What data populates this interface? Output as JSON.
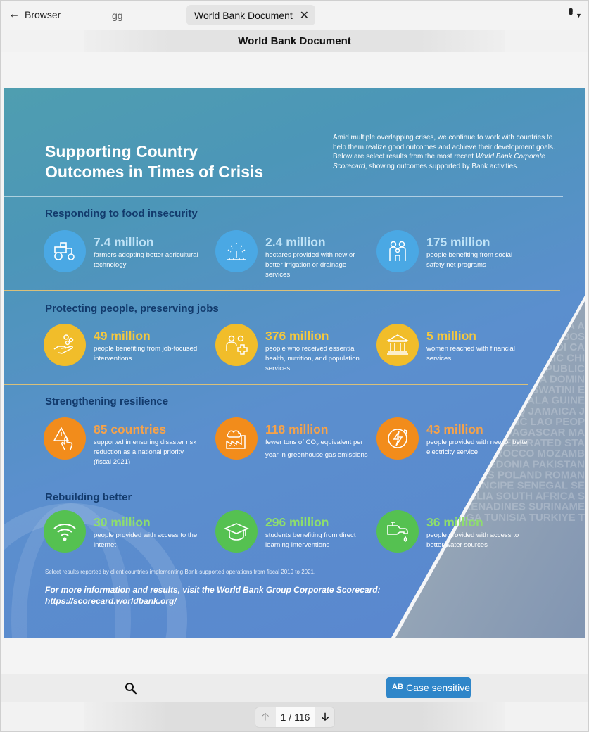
{
  "browser": {
    "back_label": "Browser",
    "url_text": "gg",
    "tab_title": "World Bank Document",
    "doc_title": "World Bank Document"
  },
  "document": {
    "title_line1": "Supporting Country",
    "title_line2": "Outcomes in Times of Crisis",
    "intro_pre": "Amid multiple overlapping crises, we continue to work with countries to help them realize good outcomes and achieve their development goals. Below are select results from the most recent ",
    "intro_italic": "World Bank Corporate Scorecard",
    "intro_post": ", showing outcomes supported by Bank activities.",
    "sections": [
      {
        "heading": "Responding to food insecurity",
        "stats": [
          {
            "value": "7.4 million",
            "desc": "farmers adopting better agricultural technology",
            "icon": "tractor-icon"
          },
          {
            "value": "2.4 million",
            "desc": "hectares provided with new or better irrigation or drainage services",
            "icon": "irrigation-icon"
          },
          {
            "value": "175 million",
            "desc": "people benefiting from social safety net programs",
            "icon": "family-icon"
          }
        ]
      },
      {
        "heading": "Protecting people, preserving jobs",
        "stats": [
          {
            "value": "49 million",
            "desc": "people benefiting from job-focused interventions",
            "icon": "hand-coins-icon"
          },
          {
            "value": "376 million",
            "desc": "people who received essential health, nutrition, and population services",
            "icon": "health-cross-icon"
          },
          {
            "value": "5 million",
            "desc": "women reached with financial services",
            "icon": "bank-icon"
          }
        ]
      },
      {
        "heading": "Strengthening resilience",
        "stats": [
          {
            "value": "85 countries",
            "desc": "supported in ensuring disaster risk reduction as a national priority (fiscal 2021)",
            "icon": "warning-hand-icon"
          },
          {
            "value": "118 million",
            "desc_pre": "fewer tons of CO",
            "desc_sub": "2",
            "desc_post": " equivalent per year in greenhouse gas emissions",
            "icon": "factory-cloud-icon"
          },
          {
            "value": "43 million",
            "desc": "people provided with new or better electricity service",
            "icon": "electricity-icon"
          }
        ]
      },
      {
        "heading": "Rebuilding better",
        "stats": [
          {
            "value": "30 million",
            "desc": "people provided with access to the internet",
            "icon": "wifi-icon"
          },
          {
            "value": "296 million",
            "desc": "students benefiting from direct learning interventions",
            "icon": "graduation-cap-icon"
          },
          {
            "value": "36 million",
            "desc": "people provided with access to better water sources",
            "icon": "water-tap-icon"
          }
        ]
      }
    ],
    "footnote": "Select results reported by client countries implementing Bank-supported operations from fiscal 2019 to 2021.",
    "more_line1": "For more information and results, visit the World Bank Group Corporate Scorecard:",
    "more_line2": "https://scorecard.worldbank.org/",
    "country_rows": [
      "ARGENTINA A",
      "BOLIVIA BOS",
      "BURUNDI CA",
      "PUBLIC CHI",
      "CONGO REPUBLIC",
      "DOMINICA DOMIN",
      "SALVADOR ESWATINI E",
      "GUATEMALA GUINE",
      "REPUBLIC IRAQ JAMAICA J",
      "REPUBLIC LAO PEOP",
      "MADAGASCAR MA",
      "MEXICO FEDERATED STA",
      "MONTENEGRO MOROCCO MOZAMB",
      "NORTH MACEDONIA PAKISTAN",
      "PHILIPPINES POLAND ROMAN",
      "SAO TOME AND PRINCIPE SENEGAL SE",
      "ISLANDS SOMALIA SOUTH AFRICA S",
      "VINCENT AND THE GRENADINES SURINAME",
      "TIMOR-LESTE TOGO TONGA TUNISIA TURKIYE T"
    ]
  },
  "toolbar": {
    "case_sensitive_label": "Case sensitive",
    "case_icon_text": "AB"
  },
  "pager": {
    "label": "1 / 116"
  },
  "colors": {
    "accent_blue": "#2f86c9",
    "heading_navy": "#123a6c",
    "food_circle": "#4aa8e4",
    "jobs_circle": "#f1bd2a",
    "resilience_circle": "#f28c1b",
    "rebuild_circle": "#55c151"
  }
}
